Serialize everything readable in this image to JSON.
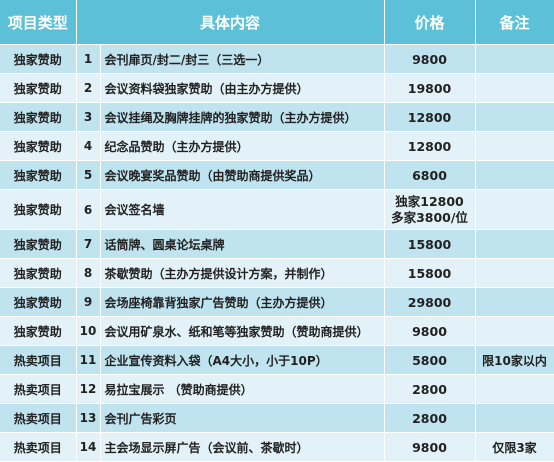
{
  "headers": {
    "type": "项目类型",
    "content": "具体内容",
    "price": "价格",
    "note": "备注"
  },
  "rows": [
    {
      "type": "独家赞助",
      "num": "1",
      "content": "会刊扉页/封二/封三（三选一）",
      "price": "9800",
      "note": ""
    },
    {
      "type": "独家赞助",
      "num": "2",
      "content": "会议资料袋独家赞助（由主办方提供）",
      "price": "19800",
      "note": ""
    },
    {
      "type": "独家赞助",
      "num": "3",
      "content": "会议挂绳及胸牌挂牌的独家赞助（主办方提供）",
      "price": "12800",
      "note": ""
    },
    {
      "type": "独家赞助",
      "num": "4",
      "content": "纪念品赞助（主办方提供）",
      "price": "12800",
      "note": ""
    },
    {
      "type": "独家赞助",
      "num": "5",
      "content": "会议晚宴奖品赞助（由赞助商提供奖品）",
      "price": "6800",
      "note": ""
    },
    {
      "type": "独家赞助",
      "num": "6",
      "content": "会议签名墙",
      "price": "独家12800",
      "price2": "多家3800/位",
      "note": ""
    },
    {
      "type": "独家赞助",
      "num": "7",
      "content": "话筒牌、圆桌论坛桌牌",
      "price": "15800",
      "note": ""
    },
    {
      "type": "独家赞助",
      "num": "8",
      "content": "茶歇赞助（主办方提供设计方案，并制作）",
      "price": "15800",
      "note": ""
    },
    {
      "type": "独家赞助",
      "num": "9",
      "content": "会场座椅靠背独家广告赞助（主办方提供）",
      "price": "29800",
      "note": ""
    },
    {
      "type": "独家赞助",
      "num": "10",
      "content": "会议用矿泉水、纸和笔等独家赞助（赞助商提供）",
      "price": "9800",
      "note": ""
    },
    {
      "type": "热卖项目",
      "num": "11",
      "content": "企业宣传资料入袋（A4大小，小于10P）",
      "price": "5800",
      "note": "限10家以内"
    },
    {
      "type": "热卖项目",
      "num": "12",
      "content": "易拉宝展示 （赞助商提供）",
      "price": "2800",
      "note": ""
    },
    {
      "type": "热卖项目",
      "num": "13",
      "content": "会刊广告彩页",
      "price": "2800",
      "note": ""
    },
    {
      "type": "热卖项目",
      "num": "14",
      "content": "主会场显示屏广告（会议前、茶歇时）",
      "price": "9800",
      "note": "仅限3家"
    }
  ]
}
